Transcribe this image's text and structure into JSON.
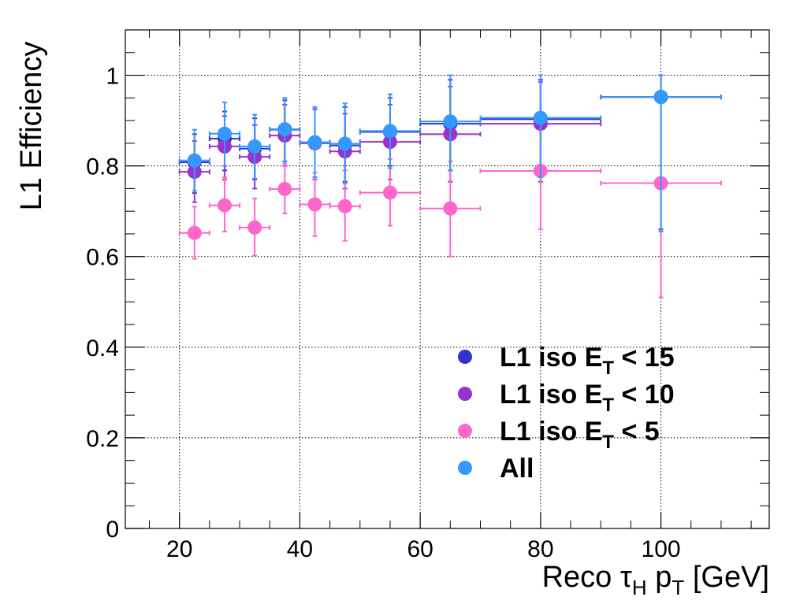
{
  "chart_data": {
    "type": "scatter",
    "title": "",
    "xlabel": "Reco",
    "xlabel_tau": "τ",
    "xlabel_tau_sub": "H",
    "xlabel_p": "p",
    "xlabel_p_sub": "T",
    "xlabel_unit": "[GeV]",
    "ylabel": "L1 Efficiency",
    "xlim": [
      11,
      118
    ],
    "ylim": [
      0,
      1.1
    ],
    "x_ticks": [
      "20",
      "40",
      "60",
      "80",
      "100"
    ],
    "y_ticks": [
      "0",
      "0.2",
      "0.4",
      "0.6",
      "0.8",
      "1"
    ],
    "grid": true,
    "legend_position": "bottom-right",
    "series": [
      {
        "name": "L1 iso E_T < 15",
        "legend_main": "L1 iso E",
        "legend_sub": "T",
        "legend_rest": " < 15",
        "color": "#3333cc",
        "points": [
          {
            "x": 22.5,
            "xlo": 20,
            "xhi": 25,
            "y": 0.808,
            "ylo": 0.74,
            "yhi": 0.87
          },
          {
            "x": 27.5,
            "xlo": 25,
            "xhi": 30,
            "y": 0.86,
            "ylo": 0.79,
            "yhi": 0.92
          },
          {
            "x": 32.5,
            "xlo": 30,
            "xhi": 35,
            "y": 0.838,
            "ylo": 0.77,
            "yhi": 0.905
          },
          {
            "x": 37.5,
            "xlo": 35,
            "xhi": 40,
            "y": 0.88,
            "ylo": 0.81,
            "yhi": 0.945
          },
          {
            "x": 42.5,
            "xlo": 40,
            "xhi": 45,
            "y": 0.852,
            "ylo": 0.775,
            "yhi": 0.925
          },
          {
            "x": 47.5,
            "xlo": 45,
            "xhi": 50,
            "y": 0.845,
            "ylo": 0.765,
            "yhi": 0.93
          },
          {
            "x": 55,
            "xlo": 50,
            "xhi": 60,
            "y": 0.875,
            "ylo": 0.8,
            "yhi": 0.95
          },
          {
            "x": 65,
            "xlo": 60,
            "xhi": 70,
            "y": 0.893,
            "ylo": 0.79,
            "yhi": 0.99
          },
          {
            "x": 80,
            "xlo": 70,
            "xhi": 90,
            "y": 0.903,
            "ylo": 0.78,
            "yhi": 0.99
          },
          {
            "x": 100,
            "xlo": 90,
            "xhi": 110,
            "y": 0.952,
            "ylo": 0.66,
            "yhi": 1.0
          }
        ]
      },
      {
        "name": "L1 iso E_T < 10",
        "legend_main": "L1 iso E",
        "legend_sub": "T",
        "legend_rest": " < 10",
        "color": "#9933cc",
        "points": [
          {
            "x": 22.5,
            "xlo": 20,
            "xhi": 25,
            "y": 0.787,
            "ylo": 0.72,
            "yhi": 0.855
          },
          {
            "x": 27.5,
            "xlo": 25,
            "xhi": 30,
            "y": 0.843,
            "ylo": 0.77,
            "yhi": 0.91
          },
          {
            "x": 32.5,
            "xlo": 30,
            "xhi": 35,
            "y": 0.82,
            "ylo": 0.75,
            "yhi": 0.89
          },
          {
            "x": 37.5,
            "xlo": 35,
            "xhi": 40,
            "y": 0.867,
            "ylo": 0.8,
            "yhi": 0.935
          },
          {
            "x": 42.5,
            "xlo": 40,
            "xhi": 45,
            "y": 0.85,
            "ylo": 0.77,
            "yhi": 0.925
          },
          {
            "x": 47.5,
            "xlo": 45,
            "xhi": 50,
            "y": 0.832,
            "ylo": 0.75,
            "yhi": 0.915
          },
          {
            "x": 55,
            "xlo": 50,
            "xhi": 60,
            "y": 0.853,
            "ylo": 0.77,
            "yhi": 0.935
          },
          {
            "x": 65,
            "xlo": 60,
            "xhi": 70,
            "y": 0.87,
            "ylo": 0.765,
            "yhi": 0.975
          },
          {
            "x": 80,
            "xlo": 70,
            "xhi": 90,
            "y": 0.893,
            "ylo": 0.765,
            "yhi": 0.985
          },
          {
            "x": 100,
            "xlo": 90,
            "xhi": 110,
            "y": 0.952,
            "ylo": 0.66,
            "yhi": 1.0
          }
        ]
      },
      {
        "name": "L1 iso E_T < 5",
        "legend_main": "L1 iso E",
        "legend_sub": "T",
        "legend_rest": " < 5",
        "color": "#ff66cc",
        "points": [
          {
            "x": 22.5,
            "xlo": 20,
            "xhi": 25,
            "y": 0.652,
            "ylo": 0.595,
            "yhi": 0.71
          },
          {
            "x": 27.5,
            "xlo": 25,
            "xhi": 30,
            "y": 0.713,
            "ylo": 0.655,
            "yhi": 0.775
          },
          {
            "x": 32.5,
            "xlo": 30,
            "xhi": 35,
            "y": 0.664,
            "ylo": 0.602,
            "yhi": 0.728
          },
          {
            "x": 37.5,
            "xlo": 35,
            "xhi": 40,
            "y": 0.749,
            "ylo": 0.695,
            "yhi": 0.805
          },
          {
            "x": 42.5,
            "xlo": 40,
            "xhi": 45,
            "y": 0.715,
            "ylo": 0.645,
            "yhi": 0.785
          },
          {
            "x": 47.5,
            "xlo": 45,
            "xhi": 50,
            "y": 0.711,
            "ylo": 0.635,
            "yhi": 0.79
          },
          {
            "x": 55,
            "xlo": 50,
            "xhi": 60,
            "y": 0.741,
            "ylo": 0.668,
            "yhi": 0.815
          },
          {
            "x": 65,
            "xlo": 60,
            "xhi": 70,
            "y": 0.706,
            "ylo": 0.6,
            "yhi": 0.81
          },
          {
            "x": 80,
            "xlo": 70,
            "xhi": 90,
            "y": 0.789,
            "ylo": 0.66,
            "yhi": 0.91
          },
          {
            "x": 100,
            "xlo": 90,
            "xhi": 110,
            "y": 0.762,
            "ylo": 0.51,
            "yhi": 0.945
          }
        ]
      },
      {
        "name": "All",
        "legend_main": "All",
        "legend_sub": "",
        "legend_rest": "",
        "color": "#3399ff",
        "points": [
          {
            "x": 22.5,
            "xlo": 20,
            "xhi": 25,
            "y": 0.812,
            "ylo": 0.745,
            "yhi": 0.88
          },
          {
            "x": 27.5,
            "xlo": 25,
            "xhi": 30,
            "y": 0.871,
            "ylo": 0.8,
            "yhi": 0.94
          },
          {
            "x": 32.5,
            "xlo": 30,
            "xhi": 35,
            "y": 0.843,
            "ylo": 0.772,
            "yhi": 0.913
          },
          {
            "x": 37.5,
            "xlo": 35,
            "xhi": 40,
            "y": 0.881,
            "ylo": 0.81,
            "yhi": 0.95
          },
          {
            "x": 42.5,
            "xlo": 40,
            "xhi": 45,
            "y": 0.852,
            "ylo": 0.775,
            "yhi": 0.93
          },
          {
            "x": 47.5,
            "xlo": 45,
            "xhi": 50,
            "y": 0.849,
            "ylo": 0.762,
            "yhi": 0.938
          },
          {
            "x": 55,
            "xlo": 50,
            "xhi": 60,
            "y": 0.877,
            "ylo": 0.795,
            "yhi": 0.958
          },
          {
            "x": 65,
            "xlo": 60,
            "xhi": 70,
            "y": 0.898,
            "ylo": 0.79,
            "yhi": 1.0
          },
          {
            "x": 80,
            "xlo": 70,
            "xhi": 90,
            "y": 0.906,
            "ylo": 0.775,
            "yhi": 1.0
          },
          {
            "x": 100,
            "xlo": 90,
            "xhi": 110,
            "y": 0.952,
            "ylo": 0.655,
            "yhi": 1.0
          }
        ]
      }
    ]
  }
}
